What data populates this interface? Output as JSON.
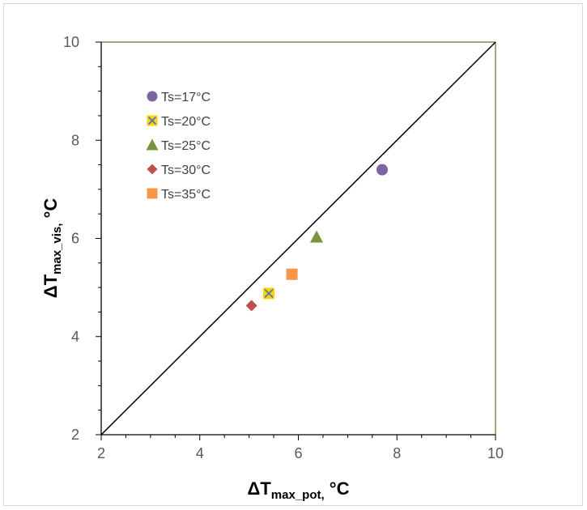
{
  "chart_data": {
    "type": "scatter",
    "title": "",
    "xlabel": {
      "main": "ΔT",
      "sub": "max_pot,",
      "unit": " °C"
    },
    "ylabel": {
      "main": "ΔT",
      "sub": "max_vis",
      "unit": "°C",
      "separator": ","
    },
    "xlim": [
      2,
      10
    ],
    "ylim": [
      2,
      10
    ],
    "xticks": [
      2,
      4,
      6,
      8,
      10
    ],
    "yticks": [
      2,
      4,
      6,
      8,
      10
    ],
    "grid": false,
    "legend_position": "top-left",
    "reference_line": {
      "type": "y=x",
      "from": [
        2,
        2
      ],
      "to": [
        10,
        10
      ],
      "color": "#000000"
    },
    "series": [
      {
        "name": "Ts=17°C",
        "marker": "circle",
        "color": "#8064a2",
        "points": [
          {
            "x": 7.7,
            "y": 7.4
          }
        ]
      },
      {
        "name": "Ts=20°C",
        "marker": "x-square",
        "color": "#ffd200",
        "edge_color": "#4472c4",
        "points": [
          {
            "x": 5.4,
            "y": 4.88
          }
        ]
      },
      {
        "name": "Ts=25°C",
        "marker": "triangle",
        "color": "#77933c",
        "points": [
          {
            "x": 6.37,
            "y": 6.03
          }
        ]
      },
      {
        "name": "Ts=30°C",
        "marker": "diamond",
        "color": "#c0504d",
        "points": [
          {
            "x": 5.05,
            "y": 4.63
          }
        ]
      },
      {
        "name": "Ts=35°C",
        "marker": "square",
        "color": "#f79646",
        "points": [
          {
            "x": 5.87,
            "y": 5.27
          }
        ]
      }
    ],
    "frame_color": "#77933c"
  }
}
